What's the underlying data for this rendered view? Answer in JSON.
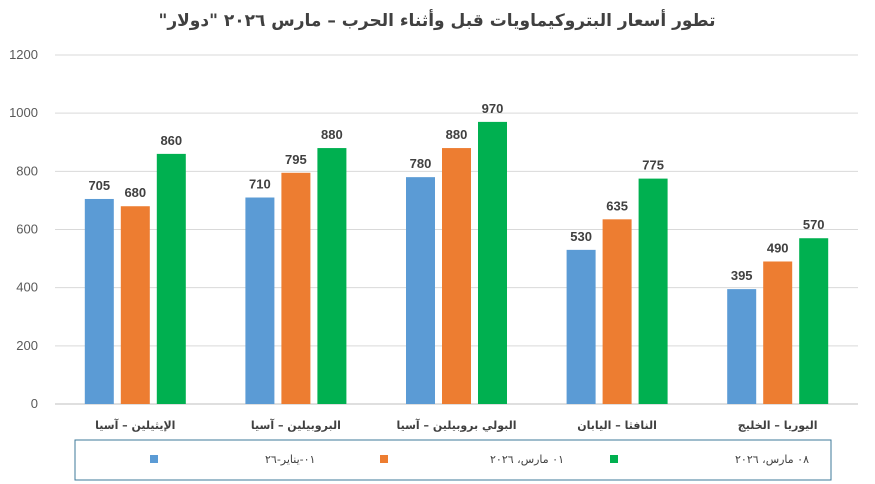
{
  "chart_data": {
    "type": "bar",
    "title": "تطور أسعار البتروكيماويات قبل وأثناء الحرب – مارس ٢٠٢٦ \"دولار\"",
    "categories": [
      "الإيثيلين – آسيا",
      "البروبيلين – آسيا",
      "البولي بروبيلين – آسيا",
      "النافثا – اليابان",
      "اليوريا – الخليج"
    ],
    "series": [
      {
        "name": "٠١-يناير-٢٦",
        "color": "#5b9bd5",
        "values": [
          705,
          710,
          780,
          530,
          395
        ]
      },
      {
        "name": "٠١ مارس، ٢٠٢٦",
        "color": "#ed7d31",
        "values": [
          680,
          795,
          880,
          635,
          490
        ]
      },
      {
        "name": "٠٨ مارس، ٢٠٢٦",
        "color": "#00b050",
        "values": [
          860,
          880,
          970,
          775,
          570
        ]
      }
    ],
    "y_ticks": [
      0,
      200,
      400,
      600,
      800,
      1000,
      1200
    ],
    "ylim": [
      0,
      1200
    ],
    "xlabel": "",
    "ylabel": "",
    "grid": true,
    "legend_position": "bottom"
  }
}
